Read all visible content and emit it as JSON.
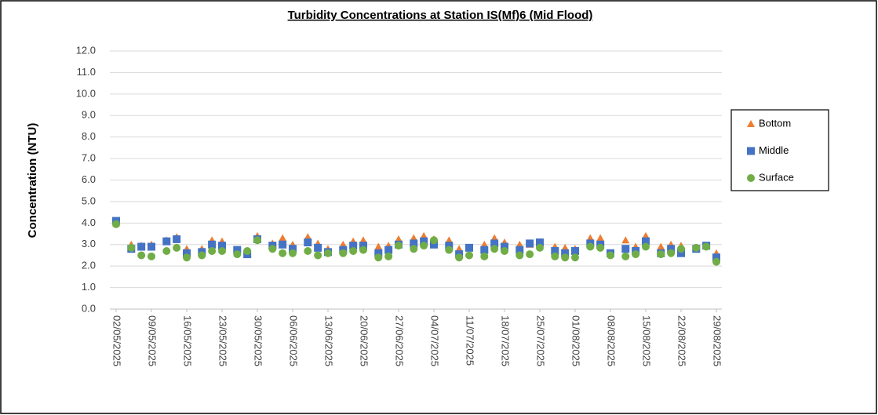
{
  "chart_data": {
    "type": "scatter",
    "title": "Turbidity Concentrations at Station IS(Mf)6 (Mid Flood)",
    "y_label": "Concentration (NTU)",
    "x": [
      "02/05/2025",
      "05/05/2025",
      "07/05/2025",
      "09/05/2025",
      "12/05/2025",
      "14/05/2025",
      "16/05/2025",
      "19/05/2025",
      "21/05/2025",
      "23/05/2025",
      "26/05/2025",
      "28/05/2025",
      "30/05/2025",
      "02/06/2025",
      "04/06/2025",
      "06/06/2025",
      "09/06/2025",
      "11/06/2025",
      "13/06/2025",
      "16/06/2025",
      "18/06/2025",
      "20/06/2025",
      "23/06/2025",
      "25/06/2025",
      "27/06/2025",
      "30/06/2025",
      "02/07/2025",
      "04/07/2025",
      "07/07/2025",
      "09/07/2025",
      "11/07/2025",
      "14/07/2025",
      "16/07/2025",
      "18/07/2025",
      "21/07/2025",
      "23/07/2025",
      "25/07/2025",
      "28/07/2025",
      "30/07/2025",
      "01/08/2025",
      "04/08/2025",
      "06/08/2025",
      "08/08/2025",
      "11/08/2025",
      "13/08/2025",
      "15/08/2025",
      "18/08/2025",
      "20/08/2025",
      "22/08/2025",
      "25/08/2025",
      "27/08/2025",
      "29/08/2025"
    ],
    "series": [
      {
        "name": "Bottom",
        "color": "#ed7d31",
        "marker": "triangle",
        "values": [
          4.0,
          3.0,
          2.95,
          3.0,
          3.2,
          3.35,
          2.8,
          2.8,
          3.2,
          3.15,
          2.7,
          2.6,
          3.4,
          3.05,
          3.3,
          3.0,
          3.35,
          3.05,
          2.8,
          3.0,
          3.15,
          3.2,
          2.9,
          2.95,
          3.25,
          3.3,
          3.4,
          3.25,
          3.2,
          2.8,
          2.85,
          3.0,
          3.3,
          3.1,
          3.0,
          3.0,
          3.1,
          2.9,
          2.85,
          2.8,
          3.3,
          3.3,
          2.6,
          3.2,
          2.9,
          3.4,
          2.9,
          3.0,
          2.95,
          2.85,
          2.95,
          2.6
        ]
      },
      {
        "name": "Middle",
        "color": "#4472c4",
        "marker": "square",
        "values": [
          4.1,
          2.8,
          2.9,
          2.9,
          3.15,
          3.25,
          2.6,
          2.65,
          3.0,
          2.95,
          2.75,
          2.55,
          3.25,
          2.95,
          3.0,
          2.8,
          3.1,
          2.85,
          2.65,
          2.75,
          2.95,
          2.95,
          2.6,
          2.75,
          3.0,
          3.05,
          3.15,
          3.0,
          2.95,
          2.55,
          2.85,
          2.75,
          3.05,
          2.9,
          2.75,
          3.05,
          3.1,
          2.7,
          2.6,
          2.7,
          3.05,
          3.0,
          2.6,
          2.8,
          2.7,
          3.15,
          2.6,
          2.8,
          2.6,
          2.8,
          2.95,
          2.4
        ]
      },
      {
        "name": "Surface",
        "color": "#70ad47",
        "marker": "circle",
        "values": [
          3.95,
          2.85,
          2.5,
          2.45,
          2.7,
          2.85,
          2.4,
          2.5,
          2.7,
          2.7,
          2.55,
          2.7,
          3.2,
          2.8,
          2.6,
          2.6,
          2.7,
          2.5,
          2.6,
          2.6,
          2.7,
          2.75,
          2.4,
          2.45,
          2.95,
          2.8,
          2.95,
          3.2,
          2.75,
          2.4,
          2.5,
          2.45,
          2.8,
          2.7,
          2.5,
          2.55,
          2.85,
          2.45,
          2.4,
          2.4,
          2.9,
          2.85,
          2.5,
          2.45,
          2.55,
          2.9,
          2.55,
          2.6,
          2.8,
          2.85,
          2.9,
          2.2
        ]
      }
    ],
    "xticks": [
      "02/05/2025",
      "09/05/2025",
      "16/05/2025",
      "23/05/2025",
      "30/05/2025",
      "06/06/2025",
      "13/06/2025",
      "20/06/2025",
      "27/06/2025",
      "04/07/2025",
      "11/07/2025",
      "18/07/2025",
      "25/07/2025",
      "01/08/2025",
      "08/08/2025",
      "15/08/2025",
      "22/08/2025",
      "29/08/2025"
    ],
    "xlim": [
      "02/05/2025",
      "29/08/2025"
    ],
    "ylim": [
      0,
      12
    ],
    "yticks": [
      {
        "value": 0,
        "label": "0.0"
      },
      {
        "value": 1,
        "label": "1.0"
      },
      {
        "value": 2,
        "label": "2.0"
      },
      {
        "value": 3,
        "label": "3.0"
      },
      {
        "value": 4,
        "label": "4.0"
      },
      {
        "value": 5,
        "label": "5.0"
      },
      {
        "value": 6,
        "label": "6.0"
      },
      {
        "value": 7,
        "label": "7.0"
      },
      {
        "value": 8,
        "label": "8.0"
      },
      {
        "value": 9,
        "label": "9.0"
      },
      {
        "value": 10,
        "label": "10.0"
      },
      {
        "value": 11,
        "label": "11.0"
      },
      {
        "value": 12,
        "label": "12.0"
      }
    ],
    "grid": true,
    "legend_position": "right"
  }
}
